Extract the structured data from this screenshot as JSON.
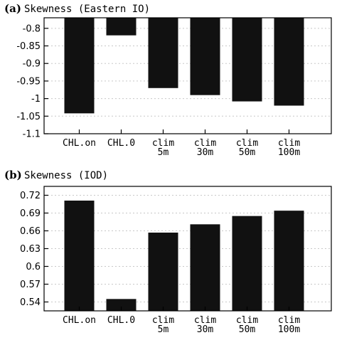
{
  "colors": {
    "bar": "#111111",
    "grid": "#c8c8c8",
    "axis": "#000000"
  },
  "chart_data": [
    {
      "type": "bar",
      "panel": "(a)",
      "title": "Skewness (Eastern IO)",
      "categories": [
        "CHL.on",
        "CHL.0",
        "clim\n5m",
        "clim\n30m",
        "clim\n50m",
        "clim\n100m"
      ],
      "values": [
        -1.042,
        -0.82,
        -0.97,
        -0.99,
        -1.008,
        -1.02
      ],
      "baseline": -0.77,
      "ylim": [
        -1.1,
        -0.77
      ],
      "yticks": [
        -1.1,
        -1.05,
        -1.0,
        -0.95,
        -0.9,
        -0.85,
        -0.8
      ],
      "ytick_labels": [
        "-1.1",
        "-1.05",
        "-1",
        "-0.95",
        "-0.9",
        "-0.85",
        "-0.8"
      ],
      "grid": true,
      "xlabel": "",
      "ylabel": ""
    },
    {
      "type": "bar",
      "panel": "(b)",
      "title": "Skewness (IOD)",
      "categories": [
        "CHL.on",
        "CHL.0",
        "clim\n5m",
        "clim\n30m",
        "clim\n50m",
        "clim\n100m"
      ],
      "values": [
        0.711,
        0.545,
        0.657,
        0.671,
        0.685,
        0.694
      ],
      "baseline": 0.525,
      "ylim": [
        0.525,
        0.735
      ],
      "yticks": [
        0.54,
        0.57,
        0.6,
        0.63,
        0.66,
        0.69,
        0.72
      ],
      "ytick_labels": [
        "0.54",
        "0.57",
        "0.6",
        "0.63",
        "0.66",
        "0.69",
        "0.72"
      ],
      "grid": true,
      "xlabel": "",
      "ylabel": ""
    }
  ]
}
